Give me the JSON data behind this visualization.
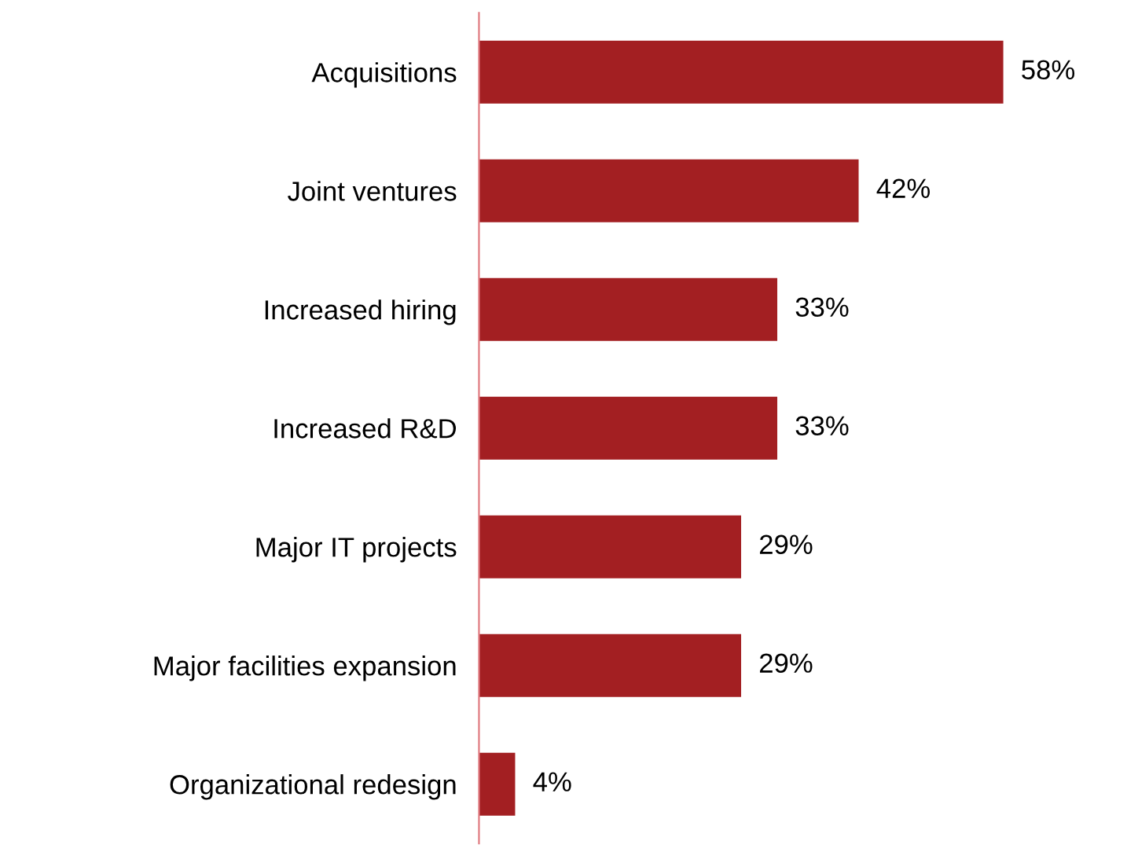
{
  "chart_data": {
    "type": "bar",
    "orientation": "horizontal",
    "categories": [
      "Acquisitions",
      "Joint ventures",
      "Increased hiring",
      "Increased R&D",
      "Major IT projects",
      "Major facilities expansion",
      "Organizational redesign"
    ],
    "values": [
      58,
      42,
      33,
      33,
      29,
      29,
      4
    ],
    "value_labels": [
      "58%",
      "42%",
      "33%",
      "33%",
      "29%",
      "29%",
      "4%"
    ],
    "color": "#a31f22",
    "grid": false,
    "legend": false,
    "tick_labels": "y"
  }
}
